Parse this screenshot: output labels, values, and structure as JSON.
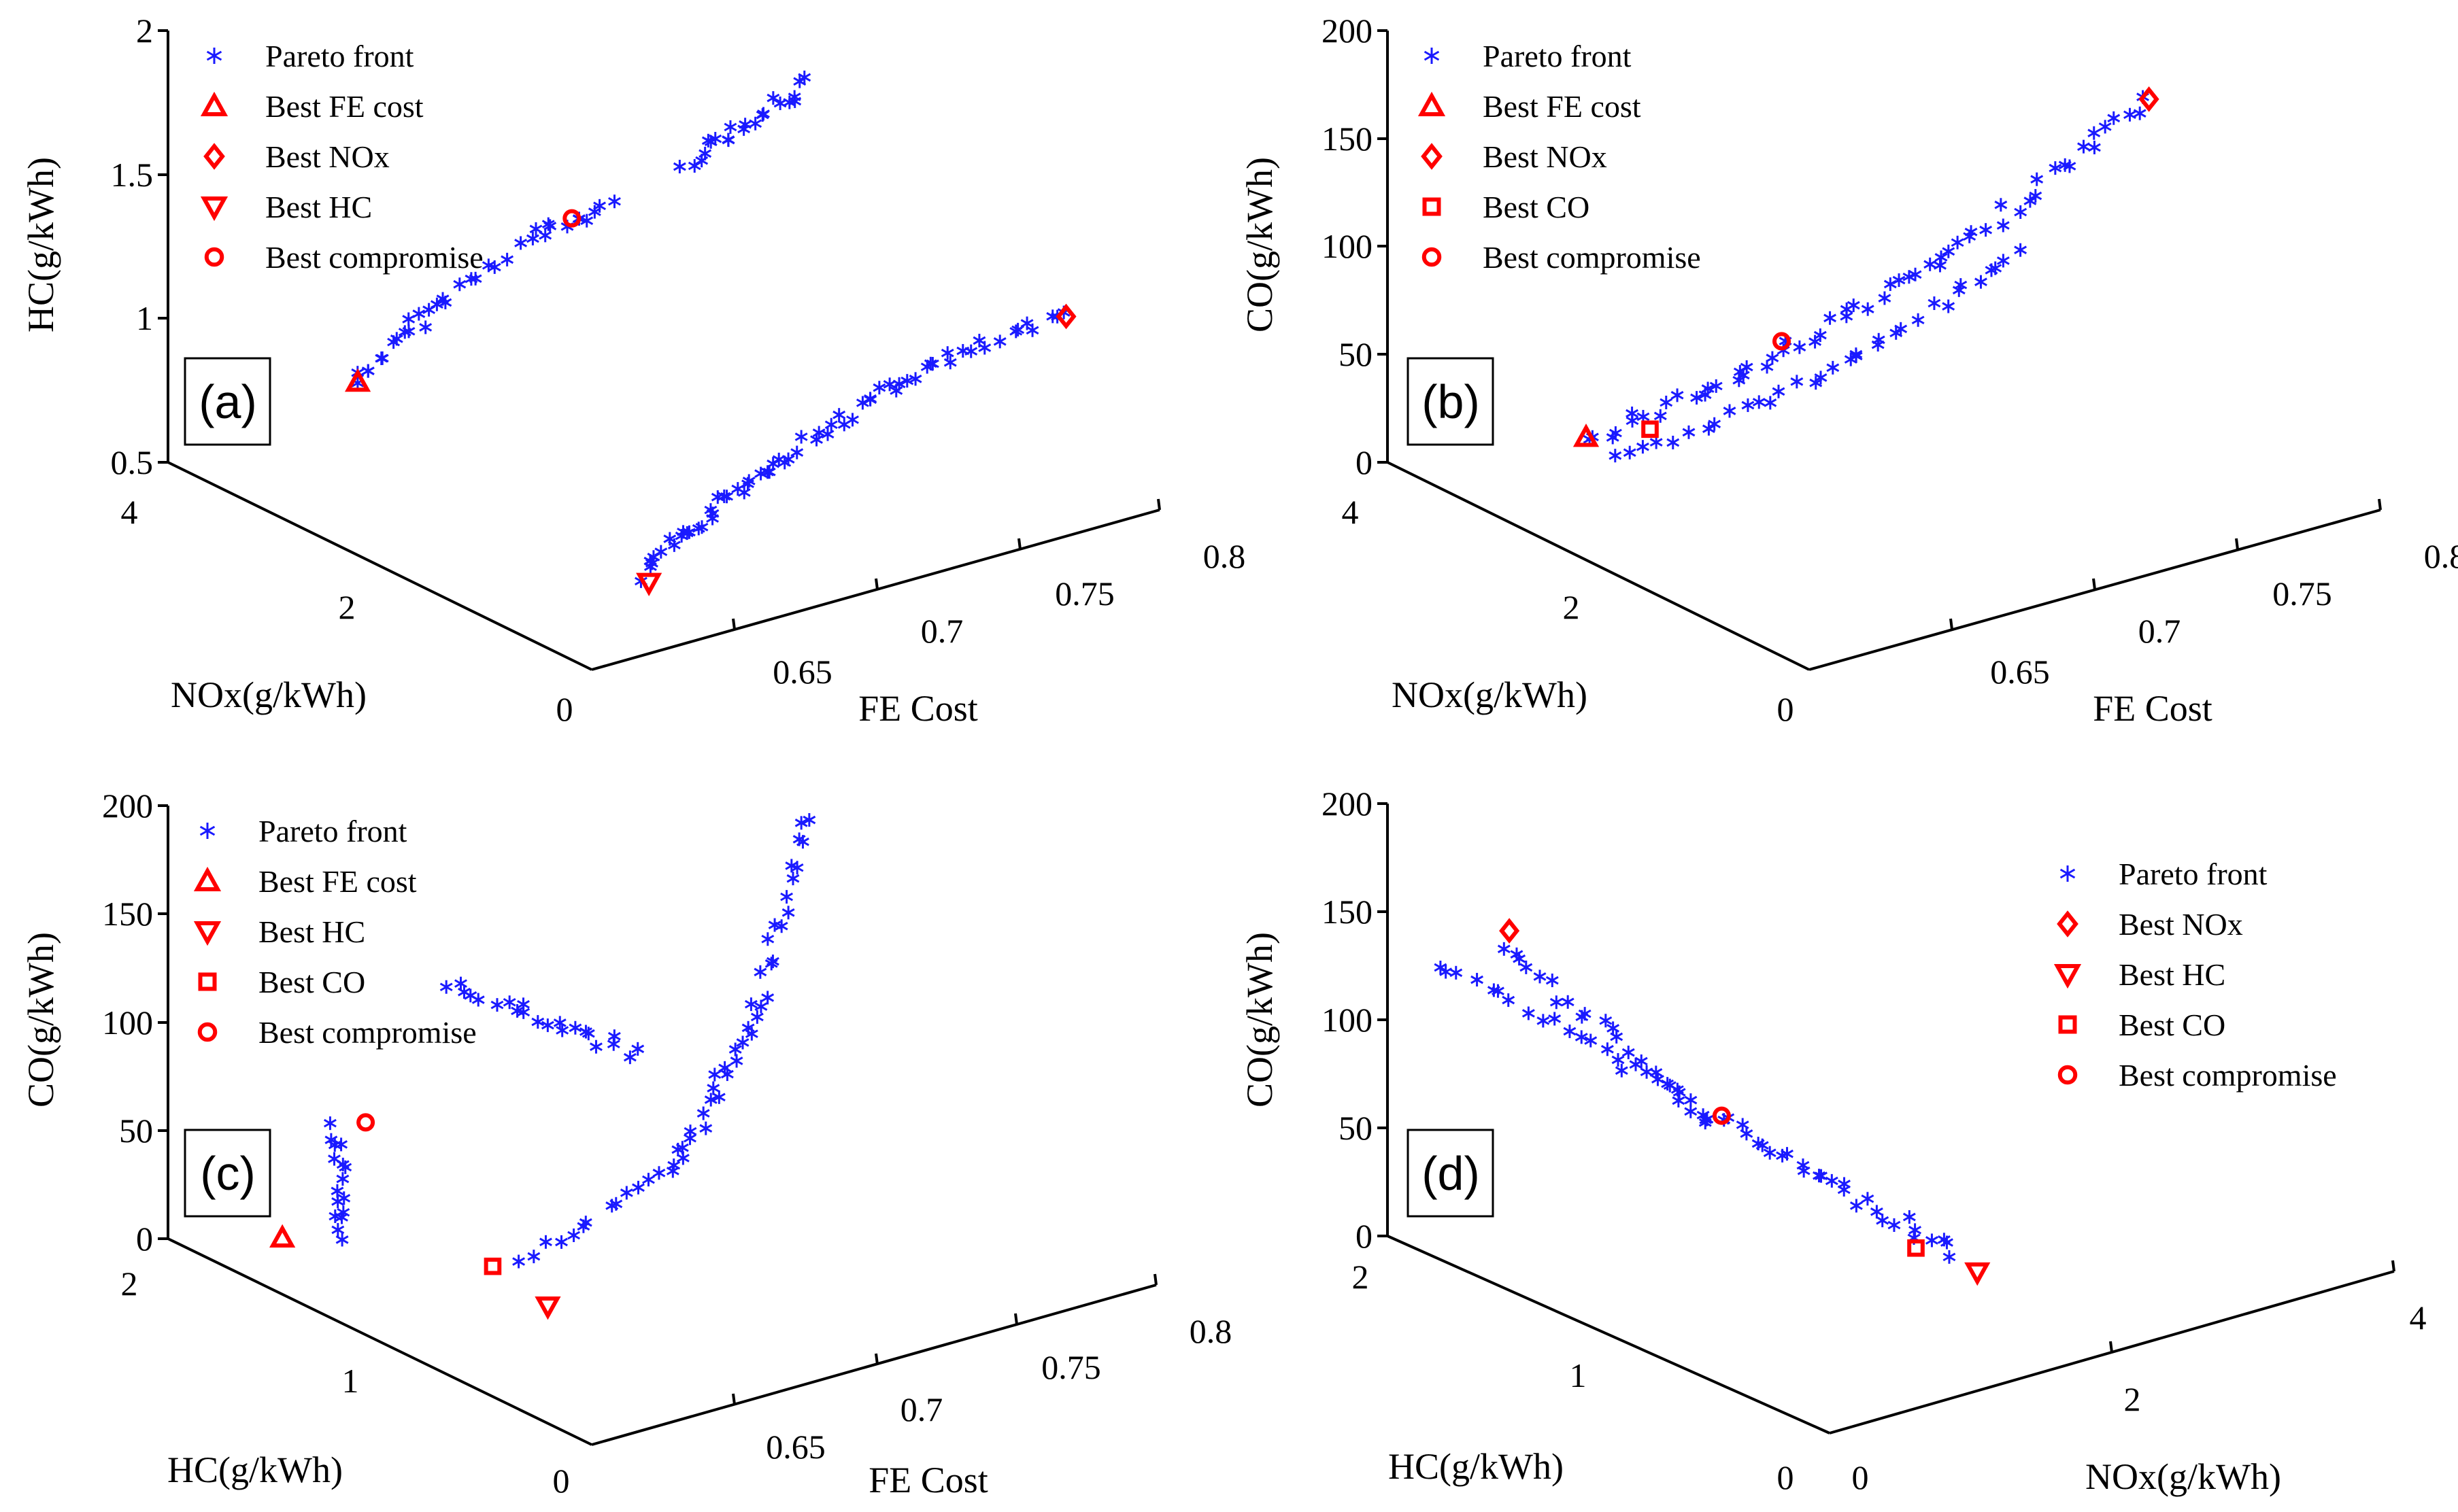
{
  "figure": "Four 3D scatter views of the Pareto front",
  "colors": {
    "pareto": "#1a1aff",
    "best": "#ff0000",
    "axis": "#000000"
  },
  "chart_data": [
    {
      "id": "a",
      "type": "scatter",
      "panel_label": "(a)",
      "xlabel": "FE Cost",
      "ylabel": "NOx(g/kWh)",
      "zlabel": "HC(g/kWh)",
      "xlim": [
        0.6,
        0.8
      ],
      "ylim": [
        0,
        4
      ],
      "zlim": [
        0.5,
        2
      ],
      "xticks": [
        "0.65",
        "0.7",
        "0.75",
        "0.8"
      ],
      "yticks": [
        "0",
        "2",
        "4"
      ],
      "zticks": [
        "0.5",
        "1",
        "1.5",
        "2"
      ],
      "legend": [
        "Pareto front",
        "Best FE cost",
        "Best NOx",
        "Best HC",
        "Best compromise"
      ],
      "legend_markers": [
        "star",
        "triangle-up",
        "diamond",
        "triangle-down",
        "circle"
      ],
      "pareto_bands": [
        {
          "from": [
            0.637,
            3.2,
            0.82
          ],
          "to": [
            0.655,
            3.0,
            1.06
          ],
          "n": 14
        },
        {
          "from": [
            0.655,
            3.0,
            1.06
          ],
          "to": [
            0.683,
            2.7,
            1.3
          ],
          "n": 12
        },
        {
          "from": [
            0.683,
            2.7,
            1.3
          ],
          "to": [
            0.7,
            2.5,
            1.38
          ],
          "n": 10
        },
        {
          "from": [
            0.718,
            2.3,
            1.52
          ],
          "to": [
            0.748,
            1.9,
            1.78
          ],
          "n": 22
        },
        {
          "from": [
            0.647,
            0.8,
            0.55
          ],
          "to": [
            0.69,
            0.7,
            0.85
          ],
          "n": 28
        },
        {
          "from": [
            0.69,
            0.7,
            0.85
          ],
          "to": [
            0.74,
            0.6,
            1.05
          ],
          "n": 22
        },
        {
          "from": [
            0.74,
            0.6,
            1.05
          ],
          "to": [
            0.782,
            0.4,
            1.15
          ],
          "n": 16
        }
      ],
      "best_points": [
        {
          "name": "Best FE cost",
          "marker": "triangle-up",
          "xyz": [
            0.637,
            3.2,
            0.82
          ]
        },
        {
          "name": "Best NOx",
          "marker": "diamond",
          "xyz": [
            0.782,
            0.4,
            1.15
          ]
        },
        {
          "name": "Best HC",
          "marker": "triangle-down",
          "xyz": [
            0.65,
            0.8,
            0.52
          ]
        },
        {
          "name": "Best compromise",
          "marker": "circle",
          "xyz": [
            0.69,
            2.6,
            1.35
          ]
        }
      ]
    },
    {
      "id": "b",
      "type": "scatter",
      "panel_label": "(b)",
      "xlabel": "FE Cost",
      "ylabel": "NOx(g/kWh)",
      "zlabel": "CO(g/kWh)",
      "xlim": [
        0.6,
        0.8
      ],
      "ylim": [
        0,
        4
      ],
      "zlim": [
        0,
        200
      ],
      "xticks": [
        "0.65",
        "0.7",
        "0.75",
        "0.8"
      ],
      "yticks": [
        "0",
        "2",
        "4"
      ],
      "zticks": [
        "0",
        "50",
        "100",
        "150",
        "200"
      ],
      "legend": [
        "Pareto front",
        "Best FE cost",
        "Best NOx",
        "Best CO",
        "Best compromise"
      ],
      "legend_markers": [
        "star",
        "triangle-up",
        "diamond",
        "square",
        "circle"
      ],
      "pareto_bands": [
        {
          "from": [
            0.64,
            3.2,
            15
          ],
          "to": [
            0.68,
            2.8,
            40
          ],
          "n": 16
        },
        {
          "from": [
            0.68,
            2.8,
            40
          ],
          "to": [
            0.73,
            2.2,
            90
          ],
          "n": 22
        },
        {
          "from": [
            0.73,
            2.2,
            90
          ],
          "to": [
            0.778,
            1.6,
            160
          ],
          "n": 22
        },
        {
          "from": [
            0.645,
            3.0,
            8
          ],
          "to": [
            0.7,
            2.3,
            50
          ],
          "n": 18
        },
        {
          "from": [
            0.7,
            2.3,
            50
          ],
          "to": [
            0.74,
            1.8,
            100
          ],
          "n": 16
        }
      ],
      "best_points": [
        {
          "name": "Best FE cost",
          "marker": "triangle-up",
          "xyz": [
            0.64,
            3.2,
            16
          ]
        },
        {
          "name": "Best NOx",
          "marker": "diamond",
          "xyz": [
            0.778,
            1.6,
            160
          ]
        },
        {
          "name": "Best CO",
          "marker": "square",
          "xyz": [
            0.655,
            3.0,
            19
          ]
        },
        {
          "name": "Best compromise",
          "marker": "circle",
          "xyz": [
            0.69,
            2.7,
            54
          ]
        }
      ]
    },
    {
      "id": "c",
      "type": "scatter",
      "panel_label": "(c)",
      "xlabel": "FE Cost",
      "ylabel": "HC(g/kWh)",
      "zlabel": "CO(g/kWh)",
      "xlim": [
        0.6,
        0.8
      ],
      "ylim": [
        0,
        2
      ],
      "zlim": [
        0,
        200
      ],
      "xticks": [
        "0.65",
        "0.7",
        "0.75",
        "0.8"
      ],
      "yticks": [
        "0",
        "1",
        "2"
      ],
      "zticks": [
        "0",
        "50",
        "100",
        "150",
        "200"
      ],
      "legend": [
        "Pareto front",
        "Best FE cost",
        "Best HC",
        "Best CO",
        "Best compromise"
      ],
      "legend_markers": [
        "star",
        "triangle-up",
        "triangle-down",
        "square",
        "circle"
      ],
      "pareto_bands": [
        {
          "from": [
            0.625,
            1.5,
            15
          ],
          "to": [
            0.63,
            1.6,
            58
          ],
          "n": 16
        },
        {
          "from": [
            0.64,
            1.2,
            140
          ],
          "to": [
            0.69,
            1.0,
            100
          ],
          "n": 22
        },
        {
          "from": [
            0.65,
            1.0,
            20
          ],
          "to": [
            0.705,
            1.0,
            40
          ],
          "n": 14
        },
        {
          "from": [
            0.705,
            1.0,
            40
          ],
          "to": [
            0.725,
            0.9,
            110
          ],
          "n": 20
        },
        {
          "from": [
            0.725,
            0.9,
            110
          ],
          "to": [
            0.745,
            0.9,
            195
          ],
          "n": 18
        }
      ],
      "best_points": [
        {
          "name": "Best FE cost",
          "marker": "triangle-up",
          "xyz": [
            0.618,
            1.7,
            8
          ]
        },
        {
          "name": "Best HC",
          "marker": "triangle-down",
          "xyz": [
            0.652,
            0.9,
            2
          ]
        },
        {
          "name": "Best CO",
          "marker": "square",
          "xyz": [
            0.655,
            1.2,
            5
          ]
        },
        {
          "name": "Best compromise",
          "marker": "circle",
          "xyz": [
            0.64,
            1.6,
            58
          ]
        }
      ]
    },
    {
      "id": "d",
      "type": "scatter",
      "panel_label": "(d)",
      "xlabel": "NOx(g/kWh)",
      "ylabel": "HC(g/kWh)",
      "zlabel": "CO(g/kWh)",
      "xlim": [
        0,
        4
      ],
      "ylim": [
        0,
        2
      ],
      "zlim": [
        0,
        200
      ],
      "xticks": [
        "0",
        "2",
        "4"
      ],
      "yticks": [
        "0",
        "1",
        "2"
      ],
      "zticks": [
        "0",
        "50",
        "100",
        "150",
        "200"
      ],
      "legend": [
        "Pareto front",
        "Best NOx",
        "Best HC",
        "Best CO",
        "Best compromise"
      ],
      "legend_markers": [
        "star",
        "diamond",
        "triangle-down",
        "square",
        "circle"
      ],
      "pareto_bands": [
        {
          "from": [
            0.35,
            1.7,
            140
          ],
          "to": [
            1.3,
            1.4,
            60
          ],
          "n": 22
        },
        {
          "from": [
            0.2,
            1.9,
            128
          ],
          "to": [
            1.3,
            1.4,
            62
          ],
          "n": 22
        },
        {
          "from": [
            1.3,
            1.4,
            60
          ],
          "to": [
            2.3,
            0.9,
            0
          ],
          "n": 30
        }
      ],
      "best_points": [
        {
          "name": "Best NOx",
          "marker": "diamond",
          "xyz": [
            0.55,
            1.8,
            140
          ]
        },
        {
          "name": "Best HC",
          "marker": "triangle-down",
          "xyz": [
            2.3,
            0.8,
            -5
          ]
        },
        {
          "name": "Best CO",
          "marker": "square",
          "xyz": [
            2.1,
            0.95,
            3
          ]
        },
        {
          "name": "Best compromise",
          "marker": "circle",
          "xyz": [
            1.35,
            1.35,
            60
          ]
        }
      ]
    }
  ]
}
